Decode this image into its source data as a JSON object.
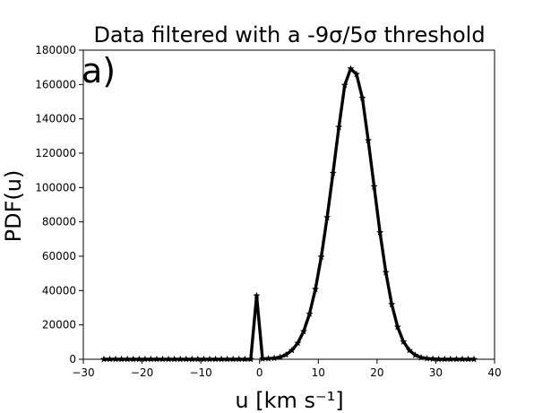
{
  "chart_data": {
    "type": "line",
    "title": "Data filtered with a -9σ/5σ threshold",
    "xlabel": "u [km s⁻¹]",
    "ylabel": "PDF(u)",
    "panel_label": "a)",
    "xlim": [
      -30,
      40
    ],
    "ylim": [
      0,
      180000
    ],
    "xticks": [
      -30,
      -20,
      -10,
      0,
      10,
      20,
      30,
      40
    ],
    "yticks": [
      0,
      20000,
      40000,
      60000,
      80000,
      100000,
      120000,
      140000,
      160000,
      180000
    ],
    "grid": false,
    "legend": "none",
    "series": [
      {
        "color": "#000000",
        "marker": "star",
        "x": [
          -26.5,
          -25.5,
          -24.5,
          -23.5,
          -22.5,
          -21.5,
          -20.5,
          -19.5,
          -18.5,
          -17.5,
          -16.5,
          -15.5,
          -14.5,
          -13.5,
          -12.5,
          -11.5,
          -10.5,
          -9.5,
          -8.5,
          -7.5,
          -6.5,
          -5.5,
          -4.5,
          -3.5,
          -2.5,
          -1.5,
          -0.5,
          0.5,
          1.5,
          2.5,
          3.5,
          4.5,
          5.5,
          6.5,
          7.5,
          8.5,
          9.5,
          10.5,
          11.5,
          12.5,
          13.5,
          14.5,
          15.5,
          16.5,
          17.5,
          18.5,
          19.5,
          20.5,
          21.5,
          22.5,
          23.5,
          24.5,
          25.5,
          26.5,
          27.5,
          28.5,
          29.5,
          30.5,
          31.5,
          32.5,
          33.5,
          34.5,
          35.5,
          36.5
        ],
        "y": [
          0,
          0,
          0,
          0,
          0,
          0,
          0,
          0,
          0,
          0,
          0,
          0,
          0,
          0,
          0,
          0,
          0,
          0,
          0,
          0,
          0,
          0,
          0,
          0,
          0,
          0,
          37000,
          300,
          400,
          600,
          1200,
          2600,
          5200,
          9400,
          16200,
          26400,
          40800,
          59600,
          82600,
          108400,
          135200,
          159600,
          169200,
          166000,
          152200,
          127400,
          100600,
          73800,
          50600,
          32000,
          18800,
          10200,
          5200,
          2400,
          1000,
          400,
          200,
          0,
          0,
          0,
          0,
          0,
          0,
          0
        ]
      }
    ]
  }
}
